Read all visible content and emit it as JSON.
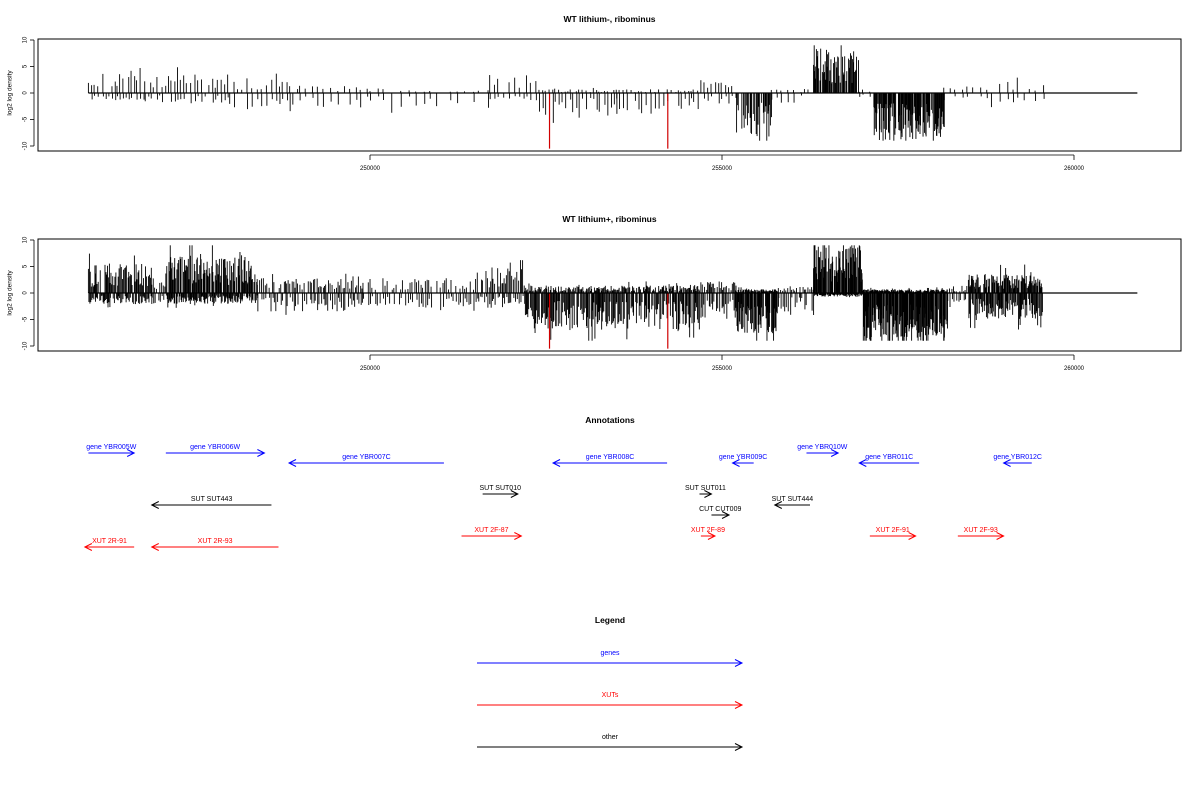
{
  "chart_data": [
    {
      "type": "bar",
      "title": "WT lithium-, ribominus",
      "xlabel": "",
      "ylabel": "log2 log density",
      "ylim": [
        -10,
        10
      ],
      "xlim": [
        246000,
        261500
      ],
      "yticks": [
        10,
        5,
        0,
        -5,
        -10
      ],
      "yticklabels": [
        "10",
        "5",
        "0",
        "-5",
        "-10"
      ],
      "xticks": [
        250000,
        255000,
        260000
      ],
      "xticklabels": [
        "250000",
        "255000",
        "260000"
      ],
      "baseline": {
        "from": 246000,
        "to": 260900
      },
      "highlight_color": "#d00000",
      "highlights": [
        {
          "x": 252550,
          "y": -10.5
        },
        {
          "x": 254230,
          "y": -10.5
        }
      ],
      "segments": [
        {
          "from": 246000,
          "to": 246800,
          "pos": 3.0,
          "neg": 1.0,
          "step": 40
        },
        {
          "from": 246800,
          "to": 248000,
          "pos": 2.5,
          "neg": 1.5,
          "step": 45
        },
        {
          "from": 248000,
          "to": 249000,
          "pos": 2.0,
          "neg": 2.5,
          "step": 60
        },
        {
          "from": 249000,
          "to": 250000,
          "pos": 1.0,
          "neg": 2.0,
          "step": 80
        },
        {
          "from": 250000,
          "to": 251700,
          "pos": 0.5,
          "neg": 2.0,
          "step": 110
        },
        {
          "from": 251700,
          "to": 252400,
          "pos": 2.5,
          "neg": 1.0,
          "step": 60
        },
        {
          "from": 252400,
          "to": 253500,
          "pos": 0.5,
          "neg": 3.0,
          "step": 45
        },
        {
          "from": 253500,
          "to": 254700,
          "pos": 0.5,
          "neg": 3.0,
          "step": 50
        },
        {
          "from": 254700,
          "to": 255200,
          "pos": 1.5,
          "neg": 1.5,
          "step": 50
        },
        {
          "from": 255200,
          "to": 255700,
          "pos": 0.0,
          "neg": 6.0,
          "step": 12
        },
        {
          "from": 255700,
          "to": 256300,
          "pos": 0.5,
          "neg": 1.5,
          "step": 80
        },
        {
          "from": 256300,
          "to": 256950,
          "pos": 6.0,
          "neg": 0.0,
          "step": 10
        },
        {
          "from": 256950,
          "to": 257150,
          "pos": 0.5,
          "neg": 1.0,
          "step": 60
        },
        {
          "from": 257150,
          "to": 258150,
          "pos": 0.0,
          "neg": 6.5,
          "step": 8
        },
        {
          "from": 258150,
          "to": 259600,
          "pos": 1.5,
          "neg": 1.5,
          "step": 90
        }
      ]
    },
    {
      "type": "bar",
      "title": "WT lithium+, ribominus",
      "xlabel": "",
      "ylabel": "log2 log density",
      "ylim": [
        -10,
        10
      ],
      "xlim": [
        246000,
        261500
      ],
      "yticks": [
        10,
        5,
        0,
        -5,
        -10
      ],
      "yticklabels": [
        "10",
        "5",
        "0",
        "-5",
        "-10"
      ],
      "xticks": [
        250000,
        255000,
        260000
      ],
      "xticklabels": [
        "250000",
        "255000",
        "260000"
      ],
      "baseline": {
        "from": 246000,
        "to": 260900
      },
      "highlight_color": "#d00000",
      "highlights": [
        {
          "x": 252550,
          "y": -10.5
        },
        {
          "x": 254230,
          "y": -10.5
        }
      ],
      "segments": [
        {
          "from": 246000,
          "to": 246900,
          "pos": 4.0,
          "neg": 1.5,
          "step": 12
        },
        {
          "from": 246900,
          "to": 247100,
          "pos": 2.0,
          "neg": 1.5,
          "step": 20
        },
        {
          "from": 247100,
          "to": 248400,
          "pos": 5.0,
          "neg": 1.5,
          "step": 10
        },
        {
          "from": 248400,
          "to": 249900,
          "pos": 2.0,
          "neg": 2.5,
          "step": 25
        },
        {
          "from": 249900,
          "to": 251500,
          "pos": 2.0,
          "neg": 2.0,
          "step": 35
        },
        {
          "from": 251500,
          "to": 252200,
          "pos": 3.5,
          "neg": 1.5,
          "step": 20
        },
        {
          "from": 252200,
          "to": 254700,
          "pos": 1.0,
          "neg": 5.0,
          "step": 12
        },
        {
          "from": 254700,
          "to": 255200,
          "pos": 1.5,
          "neg": 3.5,
          "step": 15
        },
        {
          "from": 255200,
          "to": 255800,
          "pos": 0.5,
          "neg": 5.5,
          "step": 8
        },
        {
          "from": 255800,
          "to": 256300,
          "pos": 1.0,
          "neg": 2.5,
          "step": 25
        },
        {
          "from": 256300,
          "to": 257000,
          "pos": 6.5,
          "neg": 0.5,
          "step": 8
        },
        {
          "from": 257000,
          "to": 258200,
          "pos": 0.5,
          "neg": 7.0,
          "step": 6
        },
        {
          "from": 258200,
          "to": 258500,
          "pos": 1.0,
          "neg": 2.0,
          "step": 25
        },
        {
          "from": 258500,
          "to": 259550,
          "pos": 2.5,
          "neg": 3.5,
          "step": 10
        }
      ]
    },
    {
      "type": "annotation-track",
      "title": "Annotations",
      "xlim": [
        246000,
        261500
      ],
      "colors": {
        "genes": "#0000ff",
        "XUTs": "#ff0000",
        "other": "#000000"
      },
      "features": [
        {
          "label": "gene YBR005W",
          "kind": "genes",
          "strand": "+",
          "start": 246000,
          "end": 246650,
          "row": 0
        },
        {
          "label": "gene YBR006W",
          "kind": "genes",
          "strand": "+",
          "start": 247100,
          "end": 248500,
          "row": 0
        },
        {
          "label": "gene YBR007C",
          "kind": "genes",
          "strand": "-",
          "start": 248850,
          "end": 251050,
          "row": 1
        },
        {
          "label": "gene YBR008C",
          "kind": "genes",
          "strand": "-",
          "start": 252600,
          "end": 254220,
          "row": 1
        },
        {
          "label": "gene YBR009C",
          "kind": "genes",
          "strand": "-",
          "start": 255150,
          "end": 255450,
          "row": 1
        },
        {
          "label": "gene YBR010W",
          "kind": "genes",
          "strand": "+",
          "start": 256200,
          "end": 256650,
          "row": 0
        },
        {
          "label": "gene YBR011C",
          "kind": "genes",
          "strand": "-",
          "start": 256950,
          "end": 257800,
          "row": 1
        },
        {
          "label": "gene YBR012C",
          "kind": "genes",
          "strand": "-",
          "start": 259000,
          "end": 259400,
          "row": 1
        },
        {
          "label": "SUT SUT443",
          "kind": "other",
          "strand": "-",
          "start": 246900,
          "end": 248600,
          "row": 2
        },
        {
          "label": "SUT SUT010",
          "kind": "other",
          "strand": "+",
          "start": 251600,
          "end": 252100,
          "row": 3
        },
        {
          "label": "SUT SUT011",
          "kind": "other",
          "strand": "+",
          "start": 254680,
          "end": 254850,
          "row": 3
        },
        {
          "label": "SUT SUT444",
          "kind": "other",
          "strand": "-",
          "start": 255750,
          "end": 256250,
          "row": 2
        },
        {
          "label": "CUT CUT009",
          "kind": "other",
          "strand": "+",
          "start": 254850,
          "end": 255100,
          "row": 5
        },
        {
          "label": "XUT 2R-91",
          "kind": "XUTs",
          "strand": "-",
          "start": 245950,
          "end": 246650,
          "row": 6
        },
        {
          "label": "XUT 2R-93",
          "kind": "XUTs",
          "strand": "-",
          "start": 246900,
          "end": 248700,
          "row": 6
        },
        {
          "label": "XUT 2F-87",
          "kind": "XUTs",
          "strand": "+",
          "start": 251300,
          "end": 252150,
          "row": 4
        },
        {
          "label": "XUT 2F-89",
          "kind": "XUTs",
          "strand": "+",
          "start": 254700,
          "end": 254900,
          "row": 4
        },
        {
          "label": "XUT 2F-91",
          "kind": "XUTs",
          "strand": "+",
          "start": 257100,
          "end": 257750,
          "row": 4
        },
        {
          "label": "XUT 2F-93",
          "kind": "XUTs",
          "strand": "+",
          "start": 258350,
          "end": 259000,
          "row": 4
        }
      ]
    }
  ],
  "legend": {
    "title": "Legend",
    "items": [
      {
        "label": "genes",
        "color": "#0000ff"
      },
      {
        "label": "XUTs",
        "color": "#ff0000"
      },
      {
        "label": "other",
        "color": "#000000"
      }
    ]
  }
}
